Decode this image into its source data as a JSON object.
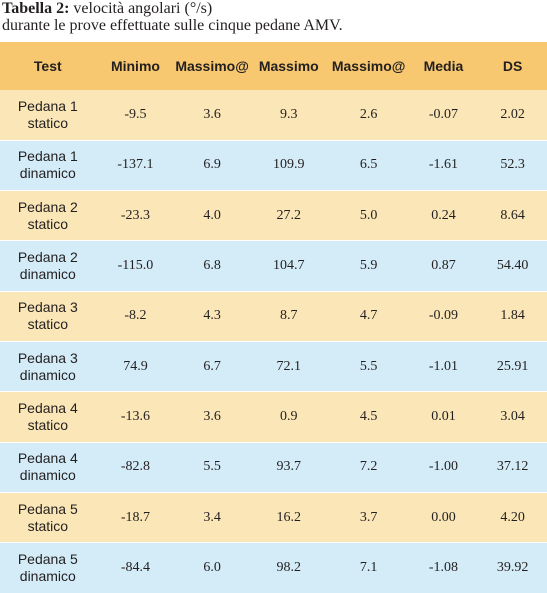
{
  "caption": {
    "bold": "Tabella 2:",
    "line1_rest": " velocità angolari (°/s)",
    "line2": "durante le prove effettuate sulle cinque pedane AMV."
  },
  "table": {
    "headers": [
      "Test",
      "Minimo",
      "Massimo@",
      "Massimo",
      "Massimo@",
      "Media",
      "DS"
    ],
    "rows": [
      {
        "label": [
          "Pedana 1",
          "statico"
        ],
        "values": [
          "-9.5",
          "3.6",
          "9.3",
          "2.6",
          "-0.07",
          "2.02"
        ]
      },
      {
        "label": [
          "Pedana 1",
          "dinamico"
        ],
        "values": [
          "-137.1",
          "6.9",
          "109.9",
          "6.5",
          "-1.61",
          "52.3"
        ]
      },
      {
        "label": [
          "Pedana 2",
          "statico"
        ],
        "values": [
          "-23.3",
          "4.0",
          "27.2",
          "5.0",
          "0.24",
          "8.64"
        ]
      },
      {
        "label": [
          "Pedana 2",
          "dinamico"
        ],
        "values": [
          "-115.0",
          "6.8",
          "104.7",
          "5.9",
          "0.87",
          "54.40"
        ]
      },
      {
        "label": [
          "Pedana 3",
          "statico"
        ],
        "values": [
          "-8.2",
          "4.3",
          "8.7",
          "4.7",
          "-0.09",
          "1.84"
        ]
      },
      {
        "label": [
          "Pedana 3",
          "dinamico"
        ],
        "values": [
          "74.9",
          "6.7",
          "72.1",
          "5.5",
          "-1.01",
          "25.91"
        ]
      },
      {
        "label": [
          "Pedana 4",
          "statico"
        ],
        "values": [
          "-13.6",
          "3.6",
          "0.9",
          "4.5",
          "0.01",
          "3.04"
        ]
      },
      {
        "label": [
          "Pedana 4",
          "dinamico"
        ],
        "values": [
          "-82.8",
          "5.5",
          "93.7",
          "7.2",
          "-1.00",
          "37.12"
        ]
      },
      {
        "label": [
          "Pedana 5",
          "statico"
        ],
        "values": [
          "-18.7",
          "3.4",
          "16.2",
          "3.7",
          "0.00",
          "4.20"
        ]
      },
      {
        "label": [
          "Pedana 5",
          "dinamico"
        ],
        "values": [
          "-84.4",
          "6.0",
          "98.2",
          "7.1",
          "-1.08",
          "39.92"
        ]
      }
    ]
  },
  "colors": {
    "header_bg": "#f7c86f",
    "row_odd_bg": "#fae6b6",
    "row_even_bg": "#d3ecf8"
  }
}
